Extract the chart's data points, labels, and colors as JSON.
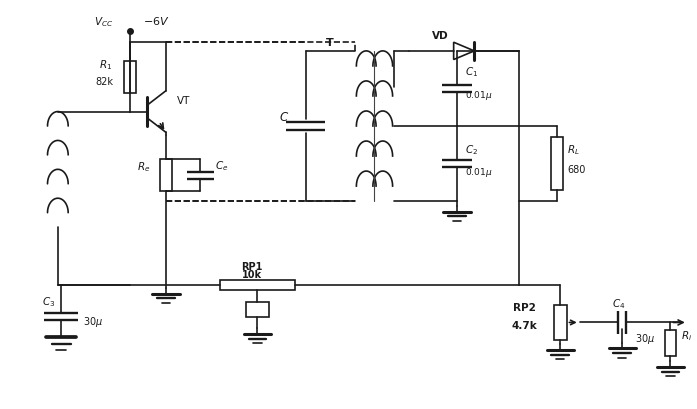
{
  "bg_color": "#ffffff",
  "line_color": "#1a1a1a",
  "line_width": 1.2,
  "fig_width": 6.97,
  "fig_height": 4.1,
  "dpi": 100,
  "xlim": [
    0,
    10
  ],
  "ylim": [
    0,
    7
  ],
  "labels": {
    "Vcc": "$V_{CC}$",
    "neg6v": "$-6V$",
    "R1": "$R_1$",
    "R1v": "82k",
    "VT": "VT",
    "Re": "$R_e$",
    "Ce": "$C_e$",
    "C": "$C$",
    "T": "T",
    "VD": "VD",
    "C1": "$C_1$",
    "C1v": "$0.01\\mu$",
    "C2": "$C_2$",
    "C2v": "$0.01\\mu$",
    "RL": "$R_L$",
    "RLv": "680",
    "RP1": "RP1",
    "RP1v": "10k",
    "C3": "$C_3$",
    "C3v": "$30\\mu$",
    "RP2": "RP2",
    "RP2v": "4.7k",
    "C4": "$C_4$",
    "C4v": "$30\\mu$",
    "Ri": "$R_i$"
  }
}
